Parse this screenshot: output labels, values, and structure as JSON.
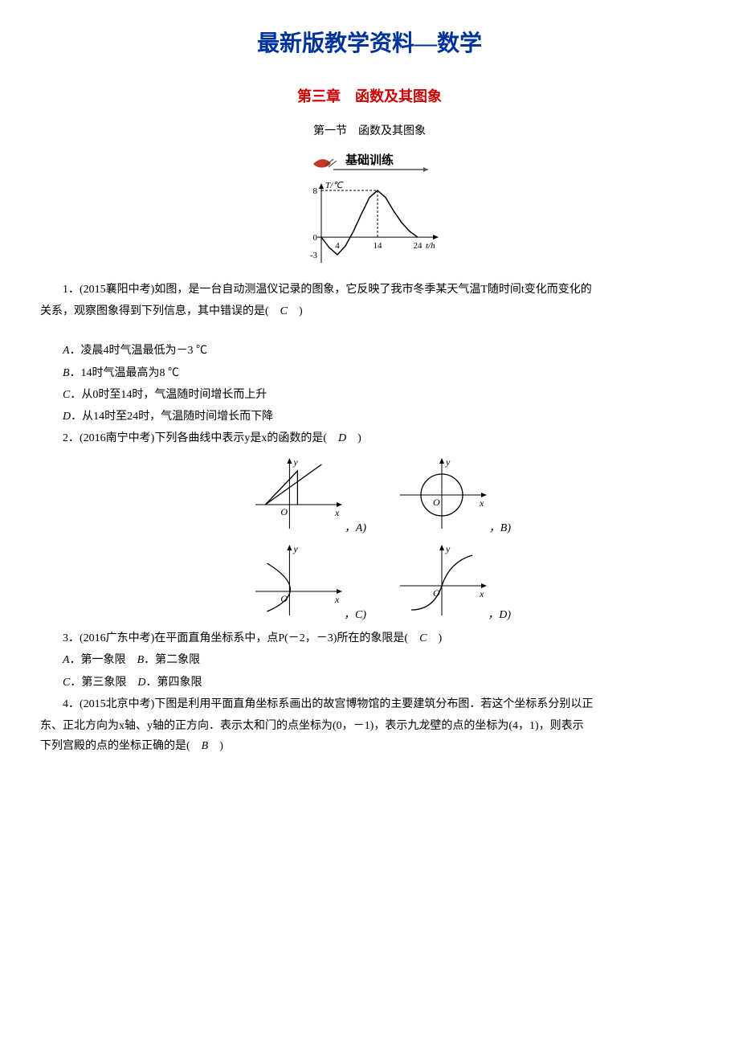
{
  "header": {
    "main_title": "最新版教学资料—数学",
    "chapter_title": "第三章　函数及其图象",
    "section_title": "第一节　函数及其图象",
    "banner_text": "基础训练"
  },
  "banner": {
    "shoe_color": "#c0392b",
    "line_color": "#555555",
    "text_color": "#000000"
  },
  "temp_chart": {
    "width": 180,
    "height": 120,
    "axis_color": "#000000",
    "curve_color": "#000000",
    "dash": "3,2",
    "y_label": "T/℃",
    "x_label": "t/h",
    "y_ticks": [
      {
        "label": "8",
        "val": 8
      },
      {
        "label": "0",
        "val": 0
      },
      {
        "label": "-3",
        "val": -3
      }
    ],
    "x_ticks": [
      {
        "label": "4",
        "val": 4
      },
      {
        "label": "14",
        "val": 14
      },
      {
        "label": "24",
        "val": 24
      }
    ],
    "curve": [
      {
        "x": 0,
        "y": 0
      },
      {
        "x": 2,
        "y": -1.8
      },
      {
        "x": 4,
        "y": -3
      },
      {
        "x": 6,
        "y": -1.5
      },
      {
        "x": 8,
        "y": 1
      },
      {
        "x": 10,
        "y": 4
      },
      {
        "x": 12,
        "y": 6.8
      },
      {
        "x": 14,
        "y": 8
      },
      {
        "x": 16,
        "y": 6.8
      },
      {
        "x": 18,
        "y": 4.5
      },
      {
        "x": 20,
        "y": 2.5
      },
      {
        "x": 22,
        "y": 1
      },
      {
        "x": 24,
        "y": 0
      }
    ]
  },
  "q1": {
    "stem_a": "1．(2015襄阳中考)如图，是一台自动测温仪记录的图象，它反映了我市冬季某天气温T随时间t变化而变化的",
    "stem_b": "关系，观察图象得到下列信息，其中错误的是(　",
    "stem_c": "　)",
    "answer": "C",
    "optA": "．凌晨4时气温最低为－3 ℃",
    "optB": "．14时气温最高为8 ℃",
    "optC": "．从0时至14时，气温随时间增长而上升",
    "optD": "．从14时至24时，气温随时间增长而下降",
    "A": "A",
    "B": "B",
    "C": "C",
    "D": "D"
  },
  "q2": {
    "stem_a": "2．(2016南宁中考)下列各曲线中表示y是x的函数的是(　",
    "stem_b": "　)",
    "answer": "D",
    "labelA": "，A)",
    "labelB": "，B)",
    "labelC": "，C)",
    "labelD": "，D)"
  },
  "mini_charts": {
    "width": 120,
    "height": 100,
    "axis_color": "#000000",
    "curve_color": "#000000",
    "y_label": "y",
    "x_label": "x",
    "origin": "O"
  },
  "q3": {
    "stem_a": "3．(2016广东中考)在平面直角坐标系中，点P(－2，－3)所在的象限是(　",
    "stem_b": "　)",
    "answer": "C",
    "optAC_line1_A": "．第一象限　",
    "optAC_line1_B": "．第二象限",
    "optAC_line2_C": "．第三象限　",
    "optAC_line2_D": "．第四象限",
    "A": "A",
    "B": "B",
    "C": "C",
    "D": "D"
  },
  "q4": {
    "stem_a": "4．(2015北京中考)下图是利用平面直角坐标系画出的故宫博物馆的主要建筑分布图．若这个坐标系分别以正",
    "stem_b": "东、正北方向为x轴、y轴的正方向．表示太和门的点坐标为(0，－1)，表示九龙壁的点的坐标为(4，1)，则表示",
    "stem_c": "下列宫殿的点的坐标正确的是(　",
    "stem_d": "　)",
    "answer": "B"
  }
}
